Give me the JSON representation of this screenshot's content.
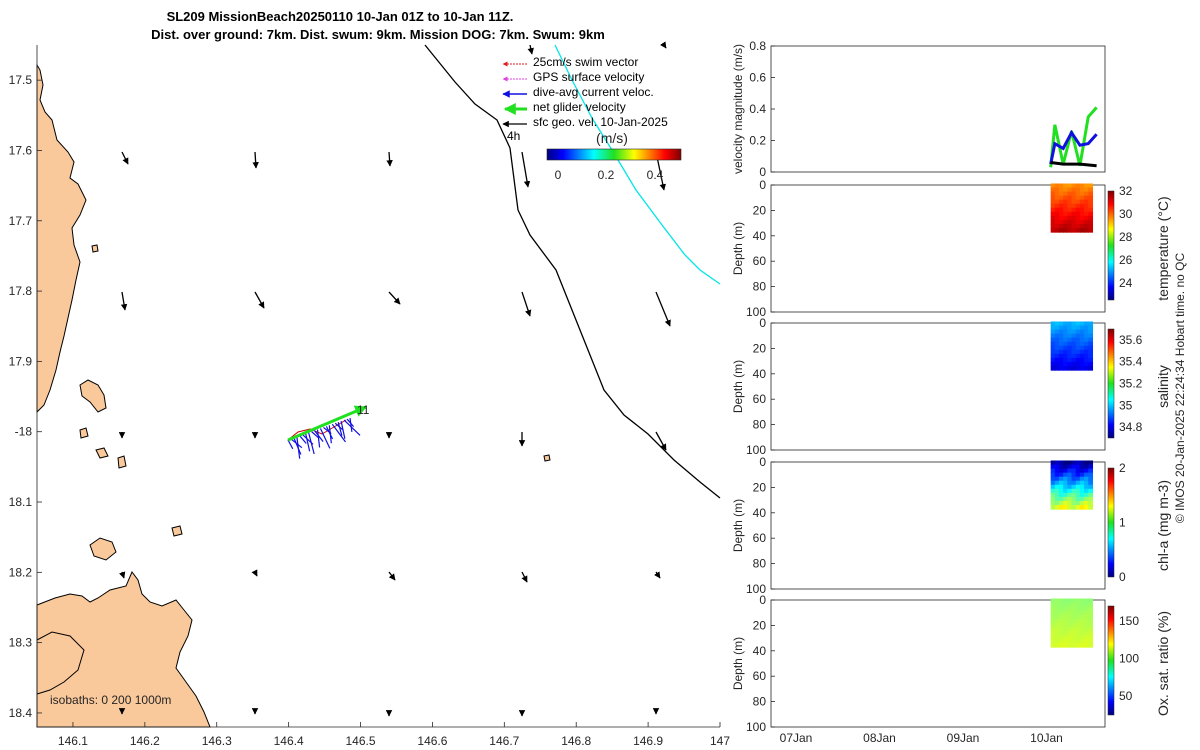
{
  "title": {
    "line1": "SL209 MissionBeach20250110 10-Jan 01Z to 10-Jan 11Z.",
    "line2": "Dist. over ground: 7km. Dist. swum: 9km. Mission DOG: 7km. Swum: 9km"
  },
  "map": {
    "xlim": [
      146.05,
      147.0
    ],
    "ylim": [
      -18.42,
      -17.45
    ],
    "lat_ticks": [
      -17.5,
      -17.6,
      -17.7,
      -17.8,
      -17.9,
      -18.0,
      -18.1,
      -18.2,
      -18.3,
      -18.4
    ],
    "lat_tick_labels": [
      "17.5",
      "17.6",
      "17.7",
      "17.8",
      "17.9",
      "-18",
      "18.1",
      "18.2",
      "18.3",
      "18.4"
    ],
    "lon_ticks": [
      146.1,
      146.2,
      146.3,
      146.4,
      146.5,
      146.6,
      146.7,
      146.8,
      146.9,
      147.0
    ],
    "lon_tick_labels": [
      "146.1",
      "146.2",
      "146.3",
      "146.4",
      "146.5",
      "146.6",
      "146.7",
      "146.8",
      "146.9",
      "147"
    ],
    "isobath_label": "isobaths: 0   200   1000m",
    "label_4h": "4h",
    "label_11": "11",
    "legend": [
      {
        "label": "25cm/s swim vector",
        "color": "#e02020"
      },
      {
        "label": "GPS surface velocity",
        "color": "#e040e0"
      },
      {
        "label": "dive-avg current veloc.",
        "color": "#1010e0"
      },
      {
        "label": "net glider velocity",
        "color": "#20e020"
      },
      {
        "label": "sfc geo. vel. 10-Jan-2025",
        "color": "#000000"
      }
    ],
    "colorbar": {
      "label": "(m/s)",
      "ticks": [
        "0",
        "0.2",
        "0.4"
      ]
    },
    "isobath_colors": {
      "0m": "#000000",
      "200m": "#000000",
      "1000m": "#00e5e5"
    },
    "land_color": "#f9c99b"
  },
  "chart_data": [
    {
      "type": "line",
      "panel": "velocity",
      "ylabel": "velocity magnitude (m/s)",
      "ylim": [
        0,
        0.8
      ],
      "yticks": [
        "0",
        "0.2",
        "0.4",
        "0.6",
        "0.8"
      ],
      "x_ticks": [
        "07Jan",
        "08Jan",
        "09Jan",
        "10Jan"
      ],
      "series": [
        {
          "color": "#20e020",
          "x": [
            10.05,
            10.1,
            10.2,
            10.3,
            10.4,
            10.5,
            10.6
          ],
          "y": [
            0.03,
            0.3,
            0.05,
            0.26,
            0.04,
            0.35,
            0.41
          ]
        },
        {
          "color": "#1010e0",
          "x": [
            10.05,
            10.1,
            10.2,
            10.3,
            10.4,
            10.5,
            10.6
          ],
          "y": [
            0.05,
            0.18,
            0.15,
            0.25,
            0.17,
            0.18,
            0.24
          ]
        },
        {
          "color": "#000000",
          "x": [
            10.05,
            10.2,
            10.4,
            10.6
          ],
          "y": [
            0.06,
            0.05,
            0.05,
            0.04
          ]
        }
      ]
    },
    {
      "type": "heatmap",
      "panel": "temperature",
      "ylabel": "Depth (m)",
      "colorbar_label": "temperature (°C)",
      "cticks": [
        "24",
        "26",
        "28",
        "30",
        "32"
      ],
      "clim": [
        22.5,
        32
      ],
      "values": [
        29.5,
        31.5
      ],
      "depth": [
        0,
        35
      ]
    },
    {
      "type": "heatmap",
      "panel": "salinity",
      "ylabel": "Depth (m)",
      "colorbar_label": "salinity",
      "cticks": [
        "34.8",
        "35",
        "35.2",
        "35.4",
        "35.6"
      ],
      "clim": [
        34.7,
        35.7
      ],
      "values": [
        34.8,
        35.0
      ],
      "depth": [
        0,
        35
      ]
    },
    {
      "type": "heatmap",
      "panel": "chl-a",
      "ylabel": "Depth (m)",
      "colorbar_label": "chl-a (mg m-3)",
      "cticks": [
        "0",
        "1",
        "2"
      ],
      "clim": [
        0,
        2
      ],
      "values": [
        0.05,
        1.2
      ],
      "depth": [
        0,
        35
      ]
    },
    {
      "type": "heatmap",
      "panel": "oxygen",
      "ylabel": "Depth (m)",
      "colorbar_label": "Ox. sat. ratio (%)",
      "cticks": [
        "50",
        "100",
        "150"
      ],
      "clim": [
        25,
        170
      ],
      "values": [
        100,
        110
      ],
      "depth": [
        0,
        35
      ]
    }
  ],
  "depth_ticks": [
    "0",
    "20",
    "40",
    "60",
    "80",
    "100"
  ],
  "footer": "© IMOS 20-Jan-2025 22:24:34 Hobart time. no QC"
}
